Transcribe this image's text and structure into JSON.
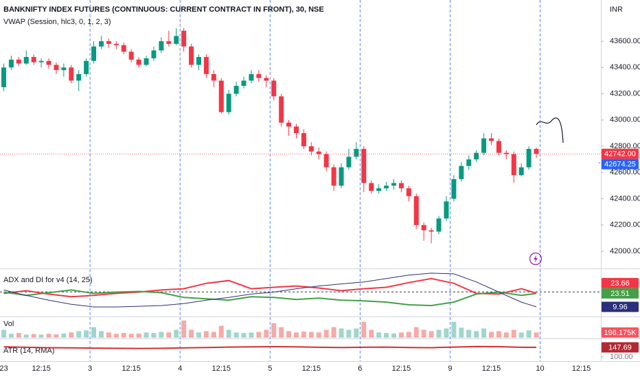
{
  "chart_data": [
    {
      "type": "candlestick",
      "title": "BANKNIFTY INDEX FUTURES (CONTINUOUS: CURRENT CONTRACT IN FRONT), 30, NSE",
      "subtitle": "VWAP (Session, hlc3, 0, 1, 2, 3)",
      "currency": "INR",
      "up_color": "#089981",
      "down_color": "#f23645",
      "open": [
        43250,
        43400,
        43460,
        43430,
        43480,
        43440,
        43450,
        43420,
        43380,
        43400,
        43300,
        43350,
        43450,
        43560,
        43600,
        43580,
        43570,
        43520,
        43460,
        43420,
        43470,
        43530,
        43600,
        43580,
        43680,
        43560,
        43420,
        43480,
        43350,
        43300,
        43060,
        43200,
        43260,
        43300,
        43350,
        43320,
        43300,
        43180,
        42980,
        42950,
        42900,
        42800,
        42760,
        42740,
        42640,
        42500,
        42640,
        42720,
        42780,
        42520,
        42460,
        42480,
        42500,
        42520,
        42480,
        42420,
        42200,
        42160,
        42150,
        42250,
        42400,
        42550,
        42650,
        42700,
        42750,
        42860,
        42840,
        42750,
        42740,
        42580,
        42640,
        42780
      ],
      "high": [
        43430,
        43490,
        43480,
        43530,
        43500,
        43470,
        43470,
        43440,
        43430,
        43420,
        43380,
        43470,
        43600,
        43640,
        43620,
        43600,
        43590,
        43540,
        43480,
        43490,
        43560,
        43630,
        43680,
        43700,
        43700,
        43580,
        43500,
        43500,
        43380,
        43320,
        43230,
        43290,
        43330,
        43380,
        43380,
        43340,
        43320,
        43200,
        43000,
        42970,
        42930,
        42830,
        42790,
        42760,
        42660,
        42670,
        42780,
        42830,
        42800,
        42540,
        42510,
        42530,
        42550,
        42540,
        42500,
        42440,
        42220,
        42180,
        42270,
        42420,
        42580,
        42680,
        42730,
        42770,
        42900,
        42900,
        42860,
        42770,
        42760,
        42670,
        42800,
        42790
      ],
      "low": [
        43220,
        43380,
        43410,
        43420,
        43420,
        43400,
        43390,
        43350,
        43330,
        43280,
        43220,
        43330,
        43430,
        43540,
        43550,
        43540,
        43500,
        43440,
        43400,
        43410,
        43450,
        43510,
        43560,
        43570,
        43520,
        43400,
        43380,
        43320,
        43250,
        43050,
        43040,
        43180,
        43240,
        43280,
        43290,
        43250,
        43150,
        42950,
        42880,
        42860,
        42780,
        42730,
        42700,
        42610,
        42460,
        42480,
        42620,
        42700,
        42450,
        42440,
        42440,
        42460,
        42470,
        42450,
        42380,
        42170,
        42080,
        42060,
        42130,
        42230,
        42380,
        42530,
        42620,
        42680,
        42730,
        42810,
        42730,
        42700,
        42520,
        42570,
        42620,
        42710
      ],
      "close": [
        43400,
        43460,
        43430,
        43480,
        43440,
        43450,
        43420,
        43380,
        43400,
        43300,
        43350,
        43450,
        43560,
        43600,
        43580,
        43570,
        43520,
        43460,
        43420,
        43470,
        43530,
        43600,
        43580,
        43640,
        43560,
        43420,
        43480,
        43350,
        43300,
        43060,
        43200,
        43260,
        43300,
        43350,
        43320,
        43300,
        43180,
        42980,
        42950,
        42900,
        42800,
        42760,
        42740,
        42640,
        42500,
        42640,
        42720,
        42780,
        42520,
        42460,
        42480,
        42500,
        42520,
        42480,
        42420,
        42200,
        42160,
        42150,
        42250,
        42380,
        42550,
        42650,
        42700,
        42750,
        42860,
        42840,
        42750,
        42740,
        42580,
        42640,
        42780,
        42742
      ],
      "last_label": "42742.00",
      "vwap": 42674.25,
      "vwap_color": "#2962ff",
      "xlim": [
        -0.5,
        79.6
      ],
      "xticks": [
        {
          "value": 0,
          "label": "23"
        },
        {
          "value": 5,
          "label": "12:15"
        },
        {
          "value": 11.5,
          "label": "3",
          "break": true
        },
        {
          "value": 17,
          "label": "12:15"
        },
        {
          "value": 23.5,
          "label": "4",
          "break": true
        },
        {
          "value": 29,
          "label": "12:15"
        },
        {
          "value": 35.5,
          "label": "5",
          "break": true
        },
        {
          "value": 41,
          "label": "12:15"
        },
        {
          "value": 47.5,
          "label": "6",
          "break": true
        },
        {
          "value": 53,
          "label": "12:15"
        },
        {
          "value": 59.5,
          "label": "9",
          "break": true
        },
        {
          "value": 65,
          "label": "12:15"
        },
        {
          "value": 71.5,
          "label": "10",
          "break": true
        },
        {
          "value": 77,
          "label": "12:15"
        }
      ],
      "ylim": [
        41875,
        43914
      ],
      "yticks": [
        {
          "value": 42000,
          "label": "42000.00"
        },
        {
          "value": 42200,
          "label": "42200.00"
        },
        {
          "value": 42400,
          "label": "42400.00"
        },
        {
          "value": 42600,
          "label": "42600.00"
        },
        {
          "value": 42800,
          "label": "42800.00"
        },
        {
          "value": 43000,
          "label": "43000.00"
        },
        {
          "value": 43200,
          "label": "43200.00"
        },
        {
          "value": 43400,
          "label": "43400.00"
        },
        {
          "value": 43600,
          "label": "43600.00"
        }
      ],
      "grid": false
    },
    {
      "type": "line",
      "title": "ADX and DI for v4 (14, 25)",
      "ylim": [
        1,
        47.2
      ],
      "hline": 25,
      "x": [
        0,
        3,
        6,
        9,
        12,
        15,
        18,
        21,
        24,
        27,
        30,
        33,
        36,
        39,
        42,
        45,
        48,
        51,
        54,
        57,
        60,
        63,
        66,
        69,
        71
      ],
      "series": [
        {
          "color": "#f23645",
          "values": [
            23.5,
            26.2,
            22.8,
            20.1,
            21.5,
            23.5,
            24.8,
            26.9,
            28.2,
            33.6,
            36.4,
            28.2,
            29.6,
            30.9,
            28.9,
            26.2,
            28.2,
            29.6,
            34.3,
            38.4,
            33.6,
            23.5,
            22.8,
            28.2,
            23.66
          ]
        },
        {
          "color": "#43a047",
          "values": [
            24.8,
            21.5,
            24.2,
            26.9,
            23.5,
            24.8,
            25.5,
            24.2,
            19.4,
            18.1,
            16.7,
            20.1,
            19.4,
            17.4,
            18.7,
            16.7,
            16.0,
            14.7,
            12.0,
            11.3,
            14.7,
            22.8,
            24.8,
            21.5,
            23.51
          ]
        },
        {
          "color": "#2a2e7c",
          "values": [
            26.9,
            21.5,
            16.7,
            12.6,
            9.9,
            9.9,
            10.6,
            11.3,
            13.3,
            16.7,
            19.4,
            22.8,
            24.8,
            28.2,
            30.9,
            33.0,
            35.0,
            38.4,
            41.8,
            43.8,
            43.1,
            35.0,
            24.8,
            14.7,
            9.96
          ]
        }
      ]
    },
    {
      "type": "bar",
      "title": "Vol",
      "ylim": [
        0,
        750000
      ],
      "up_color": "#9fd6cd",
      "down_color": "#f7aaa6",
      "label_color": "#f7525f",
      "values": [
        300000,
        150000,
        180000,
        120000,
        140000,
        120000,
        150000,
        130000,
        160000,
        200000,
        250000,
        280000,
        400000,
        250000,
        200000,
        150000,
        180000,
        150000,
        160000,
        200000,
        180000,
        220000,
        200000,
        300000,
        650000,
        300000,
        200000,
        250000,
        220000,
        450000,
        300000,
        200000,
        180000,
        200000,
        220000,
        300000,
        550000,
        400000,
        250000,
        200000,
        230000,
        220000,
        200000,
        300000,
        400000,
        350000,
        300000,
        350000,
        600000,
        300000,
        200000,
        180000,
        160000,
        200000,
        220000,
        400000,
        300000,
        250000,
        300000,
        350000,
        600000,
        380000,
        300000,
        250000,
        350000,
        220000,
        250000,
        200000,
        300000,
        200000,
        280000,
        196175
      ],
      "last_label": "196.175K"
    },
    {
      "type": "line",
      "title": "ATR (14, RMA)",
      "ylim": [
        83,
        185
      ],
      "yticks": [
        {
          "value": 100,
          "label": "100.00"
        }
      ],
      "x": [
        0,
        3,
        6,
        9,
        12,
        15,
        18,
        21,
        24,
        27,
        30,
        33,
        36,
        39,
        42,
        45,
        48,
        51,
        54,
        57,
        60,
        63,
        66,
        69,
        71
      ],
      "series": [
        {
          "color": "#d32f2f",
          "label_color": "#b22833",
          "values": [
            150,
            148,
            146,
            145,
            144,
            143,
            142,
            143,
            145,
            147,
            149,
            150,
            151,
            150,
            148,
            147,
            148,
            149,
            147,
            146,
            149,
            152,
            151,
            148,
            147.69
          ]
        }
      ]
    }
  ]
}
